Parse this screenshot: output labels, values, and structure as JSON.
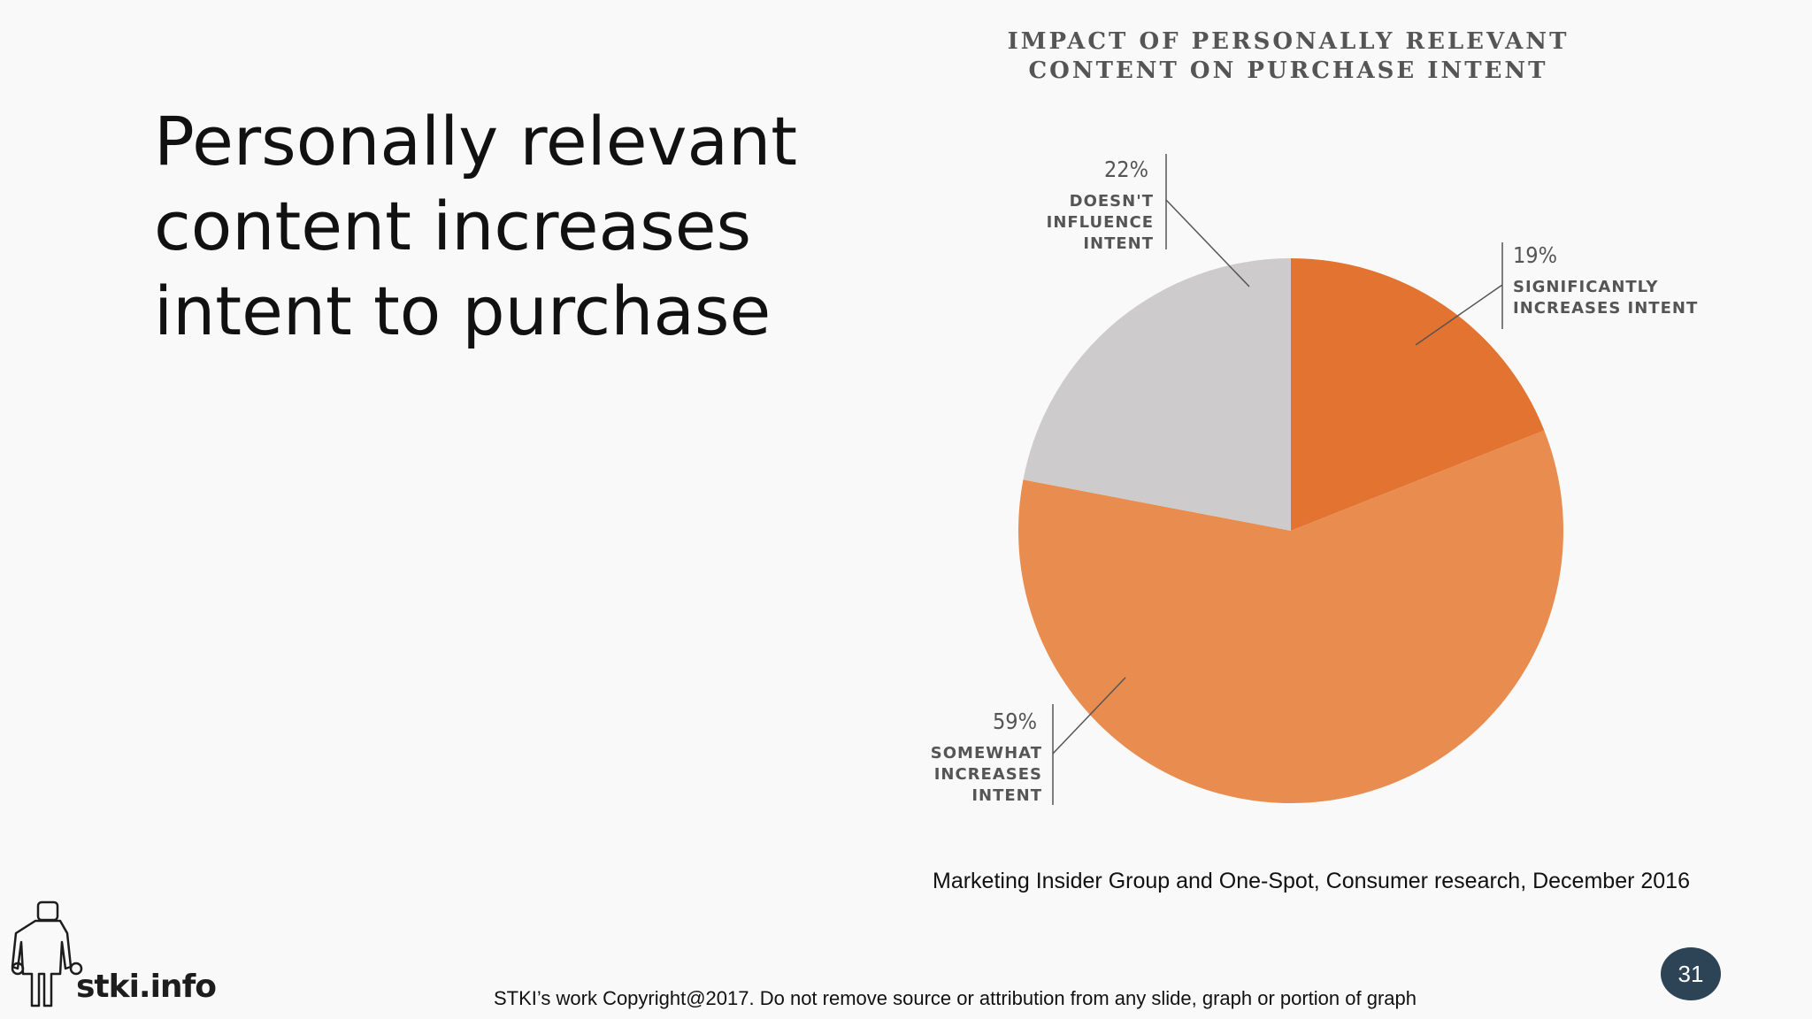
{
  "slide": {
    "heading_lines": [
      "Personally relevant",
      "content increases",
      "intent to purchase"
    ],
    "source_note": "Marketing Insider Group and One-Spot, Consumer research, December 2016",
    "copyright": "STKI’s work Copyright@2017. Do not remove source or attribution from any slide, graph or portion of graph",
    "page_number": "31",
    "logo_text": "stki.info"
  },
  "chart_data": {
    "type": "pie",
    "title_lines": [
      "IMPACT OF PERSONALLY RELEVANT",
      "CONTENT ON PURCHASE INTENT"
    ],
    "slices": [
      {
        "pct_label": "19%",
        "label_lines": [
          "SIGNIFICANTLY",
          "INCREASES INTENT"
        ],
        "value": 19,
        "color": "#e37331"
      },
      {
        "pct_label": "59%",
        "label_lines": [
          "SOMEWHAT",
          "INCREASES",
          "INTENT"
        ],
        "value": 59,
        "color": "#e88d4f"
      },
      {
        "pct_label": "22%",
        "label_lines": [
          "DOESN'T",
          "INFLUENCE",
          "INTENT"
        ],
        "value": 22,
        "color": "#cdcbcb"
      }
    ]
  }
}
